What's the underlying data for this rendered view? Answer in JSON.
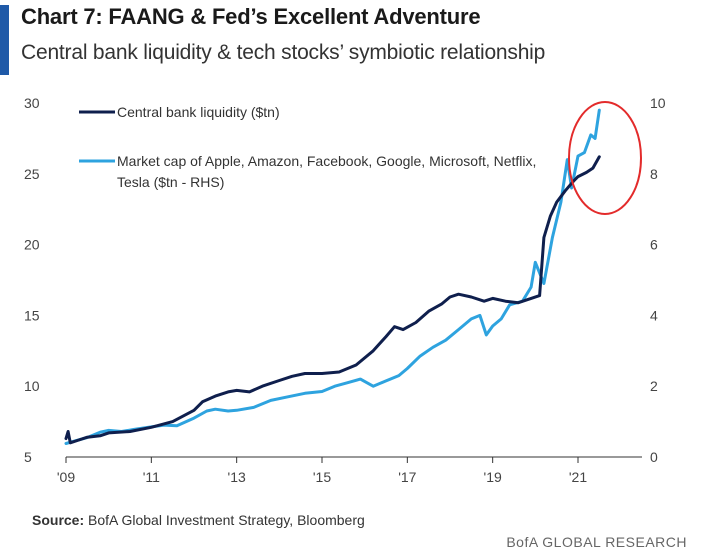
{
  "header": {
    "title": "Chart 7: FAANG & Fed’s Excellent Adventure",
    "subtitle": "Central bank liquidity & tech stocks’ symbiotic relationship"
  },
  "colors": {
    "accent_bar": "#1f5aa8",
    "series_dark": "#0f1f4d",
    "series_light": "#2ea3df",
    "highlight_circle": "#e32b2b",
    "axis": "#333333"
  },
  "chart_data": {
    "type": "line",
    "x_tick_labels": [
      "'09",
      "'11",
      "'13",
      "'15",
      "'17",
      "'19",
      "'21"
    ],
    "x_ticks": [
      2009,
      2011,
      2013,
      2015,
      2017,
      2019,
      2021
    ],
    "xlim": [
      2009,
      2022.5
    ],
    "y_left": {
      "lim": [
        5,
        30
      ],
      "ticks": [
        5,
        10,
        15,
        20,
        25,
        30
      ],
      "labels": [
        "5",
        "10",
        "15",
        "20",
        "25",
        "30"
      ]
    },
    "y_right": {
      "lim": [
        0,
        10
      ],
      "ticks": [
        0,
        2,
        4,
        6,
        8,
        10
      ],
      "labels": [
        "0",
        "2",
        "4",
        "6",
        "8",
        "10"
      ]
    },
    "legend_position": "top-left",
    "grid": false,
    "annotation": {
      "type": "circle",
      "around": "2020.6–2021.6 surge"
    },
    "series": [
      {
        "name": "Central bank liquidity ($tn)",
        "axis": "left",
        "color": "#0f1f4d",
        "points": [
          [
            2009.0,
            6.3
          ],
          [
            2009.05,
            6.8
          ],
          [
            2009.1,
            6.0
          ],
          [
            2009.3,
            6.2
          ],
          [
            2009.5,
            6.4
          ],
          [
            2009.8,
            6.5
          ],
          [
            2010.0,
            6.7
          ],
          [
            2010.5,
            6.8
          ],
          [
            2011.0,
            7.1
          ],
          [
            2011.5,
            7.5
          ],
          [
            2012.0,
            8.3
          ],
          [
            2012.2,
            8.9
          ],
          [
            2012.5,
            9.3
          ],
          [
            2012.8,
            9.6
          ],
          [
            2013.0,
            9.7
          ],
          [
            2013.3,
            9.6
          ],
          [
            2013.6,
            10.0
          ],
          [
            2014.0,
            10.4
          ],
          [
            2014.3,
            10.7
          ],
          [
            2014.6,
            10.9
          ],
          [
            2015.0,
            10.9
          ],
          [
            2015.4,
            11.0
          ],
          [
            2015.8,
            11.5
          ],
          [
            2016.2,
            12.5
          ],
          [
            2016.5,
            13.5
          ],
          [
            2016.7,
            14.2
          ],
          [
            2016.9,
            14.0
          ],
          [
            2017.2,
            14.5
          ],
          [
            2017.5,
            15.3
          ],
          [
            2017.8,
            15.8
          ],
          [
            2018.0,
            16.3
          ],
          [
            2018.2,
            16.5
          ],
          [
            2018.5,
            16.3
          ],
          [
            2018.8,
            16.0
          ],
          [
            2019.0,
            16.2
          ],
          [
            2019.3,
            16.0
          ],
          [
            2019.6,
            15.9
          ],
          [
            2019.9,
            16.2
          ],
          [
            2020.1,
            16.4
          ],
          [
            2020.2,
            20.5
          ],
          [
            2020.35,
            22.0
          ],
          [
            2020.5,
            23.0
          ],
          [
            2020.7,
            23.8
          ],
          [
            2020.9,
            24.5
          ],
          [
            2021.0,
            24.8
          ],
          [
            2021.2,
            25.1
          ],
          [
            2021.35,
            25.4
          ],
          [
            2021.5,
            26.2
          ]
        ]
      },
      {
        "name": "Market cap of Apple, Amazon, Facebook, Google, Microsoft, Netflix, Tesla ($tn - RHS)",
        "legend_lines": [
          "Market cap of Apple, Amazon, Facebook, Google, Microsoft, Netflix,",
          "Tesla ($tn - RHS)"
        ],
        "axis": "right",
        "color": "#2ea3df",
        "points": [
          [
            2009.0,
            0.38
          ],
          [
            2009.2,
            0.45
          ],
          [
            2009.5,
            0.55
          ],
          [
            2009.8,
            0.7
          ],
          [
            2010.0,
            0.75
          ],
          [
            2010.3,
            0.72
          ],
          [
            2010.6,
            0.78
          ],
          [
            2011.0,
            0.85
          ],
          [
            2011.3,
            0.9
          ],
          [
            2011.6,
            0.88
          ],
          [
            2012.0,
            1.1
          ],
          [
            2012.3,
            1.3
          ],
          [
            2012.5,
            1.35
          ],
          [
            2012.8,
            1.3
          ],
          [
            2013.0,
            1.32
          ],
          [
            2013.4,
            1.4
          ],
          [
            2013.8,
            1.6
          ],
          [
            2014.2,
            1.7
          ],
          [
            2014.6,
            1.8
          ],
          [
            2015.0,
            1.85
          ],
          [
            2015.3,
            2.0
          ],
          [
            2015.6,
            2.1
          ],
          [
            2015.9,
            2.2
          ],
          [
            2016.2,
            2.0
          ],
          [
            2016.5,
            2.15
          ],
          [
            2016.8,
            2.3
          ],
          [
            2017.0,
            2.5
          ],
          [
            2017.3,
            2.85
          ],
          [
            2017.6,
            3.1
          ],
          [
            2017.9,
            3.3
          ],
          [
            2018.2,
            3.6
          ],
          [
            2018.5,
            3.9
          ],
          [
            2018.7,
            4.0
          ],
          [
            2018.85,
            3.45
          ],
          [
            2019.0,
            3.7
          ],
          [
            2019.2,
            3.9
          ],
          [
            2019.4,
            4.3
          ],
          [
            2019.7,
            4.4
          ],
          [
            2019.9,
            4.8
          ],
          [
            2020.0,
            5.5
          ],
          [
            2020.2,
            4.9
          ],
          [
            2020.4,
            6.2
          ],
          [
            2020.6,
            7.2
          ],
          [
            2020.75,
            8.4
          ],
          [
            2020.85,
            7.6
          ],
          [
            2021.0,
            8.5
          ],
          [
            2021.15,
            8.6
          ],
          [
            2021.3,
            9.1
          ],
          [
            2021.4,
            9.0
          ],
          [
            2021.5,
            9.8
          ]
        ]
      }
    ]
  },
  "source": {
    "label": "Source:",
    "text": " BofA Global Investment Strategy, Bloomberg"
  },
  "footer": {
    "brand": "BofA GLOBAL RESEARCH"
  }
}
